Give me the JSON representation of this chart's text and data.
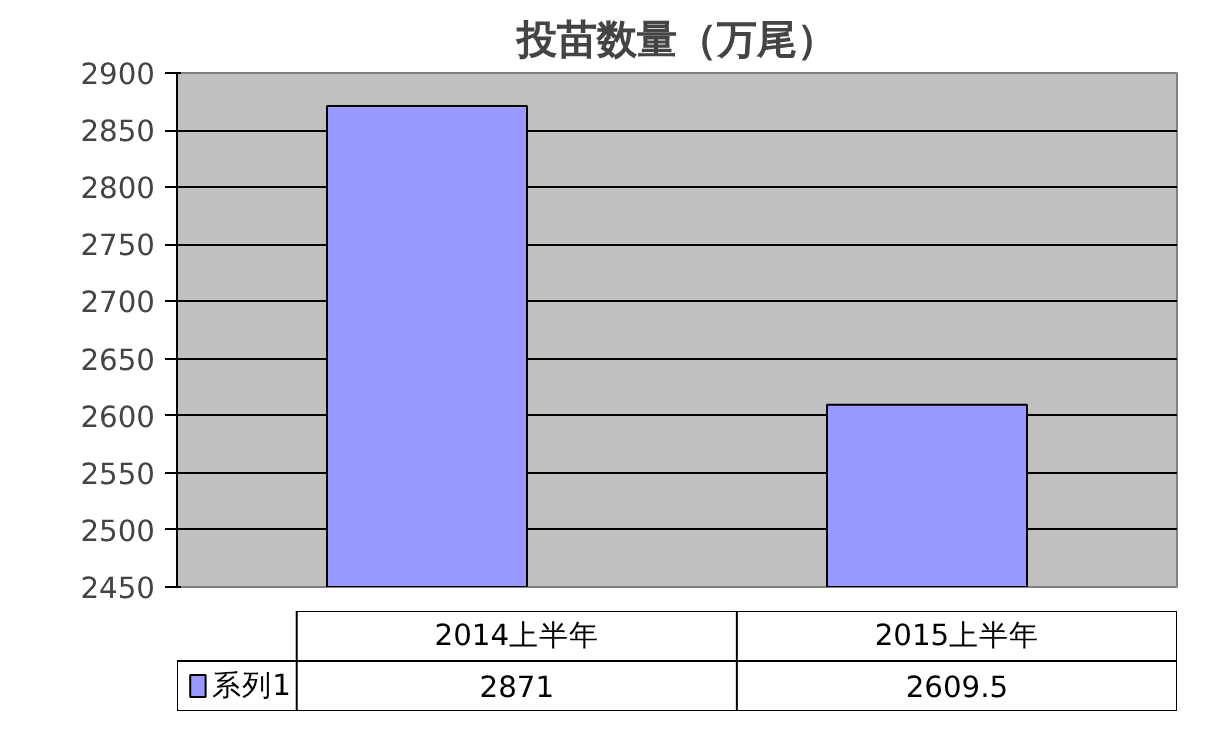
{
  "chart_data": {
    "type": "bar",
    "title": "投苗数量（万尾）",
    "categories": [
      "2014上半年",
      "2015上半年"
    ],
    "series": [
      {
        "name": "系列1",
        "color": "#9999ff",
        "values": [
          2871,
          2609.5
        ]
      }
    ],
    "ylim": [
      2450,
      2900
    ],
    "yticks": [
      2450,
      2500,
      2550,
      2600,
      2650,
      2700,
      2750,
      2800,
      2850,
      2900
    ],
    "grid": "y",
    "data_labels": true,
    "legend": "bottom"
  }
}
